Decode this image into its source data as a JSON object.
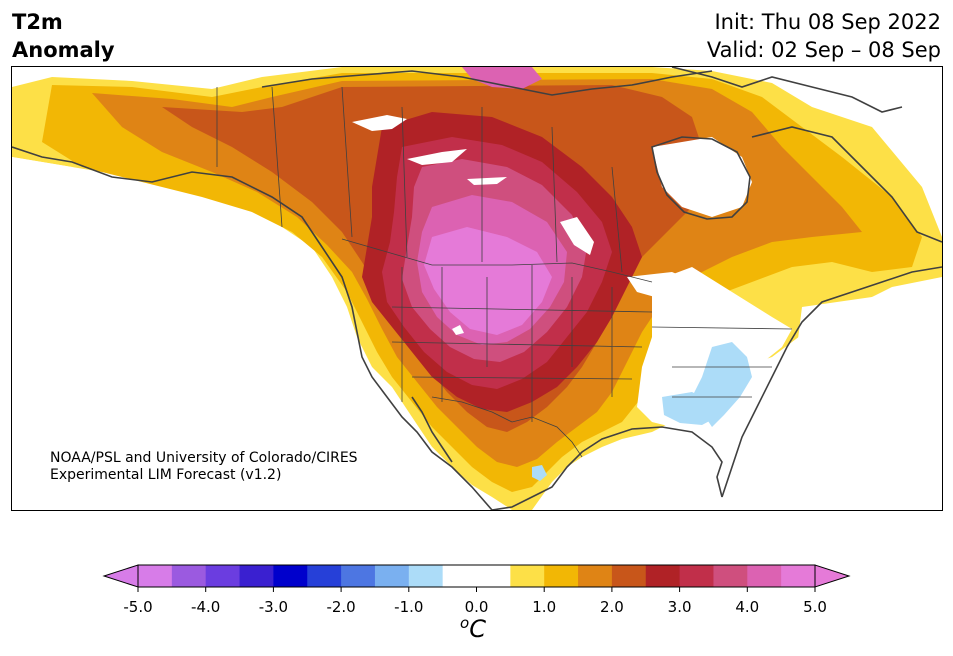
{
  "title": {
    "line1": "T2m",
    "line2": "Anomaly"
  },
  "init": "Init: Thu 08 Sep 2022",
  "valid": "Valid: 02 Sep – 08 Sep",
  "credit": {
    "line1": "NOAA/PSL and University of Colorado/CIRES",
    "line2": "Experimental LIM Forecast (v1.2)"
  },
  "colorbar": {
    "unit_prefix": "o",
    "unit": "C",
    "tick_labels": [
      "-5.0",
      "-4.0",
      "-3.0",
      "-2.0",
      "-1.0",
      "0.0",
      "1.0",
      "2.0",
      "3.0",
      "4.0",
      "5.0"
    ],
    "under_color": "#d77ce8",
    "over_color": "#e57ad8",
    "bins": [
      {
        "from": -5.0,
        "to": -4.5,
        "color": "#d77ce8"
      },
      {
        "from": -4.5,
        "to": -4.0,
        "color": "#9b5ae0"
      },
      {
        "from": -4.0,
        "to": -3.5,
        "color": "#6b3de0"
      },
      {
        "from": -3.5,
        "to": -3.0,
        "color": "#3a20d0"
      },
      {
        "from": -3.0,
        "to": -2.5,
        "color": "#0000cc"
      },
      {
        "from": -2.5,
        "to": -2.0,
        "color": "#2640d8"
      },
      {
        "from": -2.0,
        "to": -1.5,
        "color": "#4d76e2"
      },
      {
        "from": -1.5,
        "to": -1.0,
        "color": "#7ab0f0"
      },
      {
        "from": -1.0,
        "to": -0.5,
        "color": "#acdcf8"
      },
      {
        "from": -0.5,
        "to": 0.0,
        "color": "#ffffff"
      },
      {
        "from": 0.0,
        "to": 0.5,
        "color": "#ffffff"
      },
      {
        "from": 0.5,
        "to": 1.0,
        "color": "#fde047"
      },
      {
        "from": 1.0,
        "to": 1.5,
        "color": "#f2b705"
      },
      {
        "from": 1.5,
        "to": 2.0,
        "color": "#df8415"
      },
      {
        "from": 2.0,
        "to": 2.5,
        "color": "#c8561a"
      },
      {
        "from": 2.5,
        "to": 3.0,
        "color": "#b02226"
      },
      {
        "from": 3.0,
        "to": 3.5,
        "color": "#c12f4a"
      },
      {
        "from": 3.5,
        "to": 4.0,
        "color": "#cf4f7e"
      },
      {
        "from": 4.0,
        "to": 4.5,
        "color": "#dc62b2"
      },
      {
        "from": 4.5,
        "to": 5.0,
        "color": "#e57ad8"
      }
    ]
  }
}
